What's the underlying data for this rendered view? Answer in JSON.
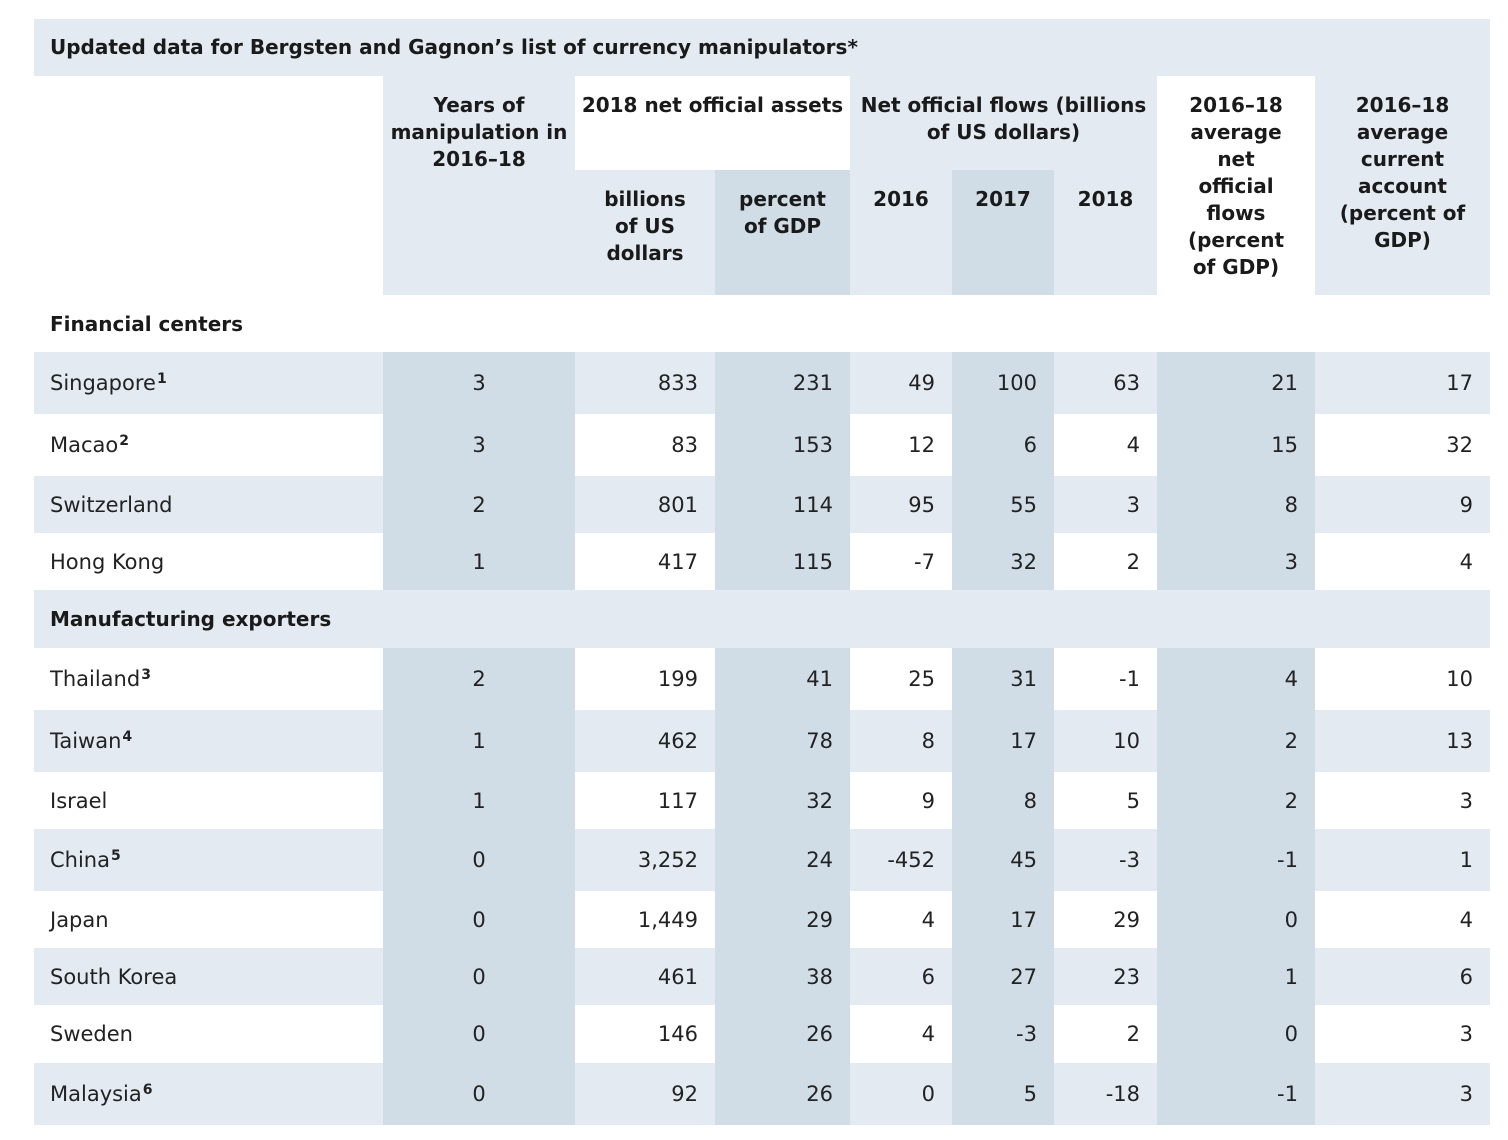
{
  "title": "Updated data for Bergsten and Gagnon’s list of currency manipulators*",
  "headers": {
    "years": "Years of manipulation in 2016–18",
    "assets_group": "2018 net official assets",
    "assets_billions": "billions of US dollars",
    "assets_percent": "percent of GDP",
    "flows_group": "Net official flows (billions of US dollars)",
    "y2016": "2016",
    "y2017": "2017",
    "y2018": "2018",
    "avg_flows": "2016–18 average net official flows (percent of GDP)",
    "avg_current": "2016–18 average current account (percent of GDP)"
  },
  "sections": [
    {
      "label": "Financial centers",
      "rows": [
        {
          "name": "Singapore",
          "note": "1",
          "years": "3",
          "billions": "833",
          "percent": "231",
          "f2016": "49",
          "f2017": "100",
          "f2018": "63",
          "avg_flows": "21",
          "avg_ca": "17"
        },
        {
          "name": "Macao",
          "note": "2",
          "years": "3",
          "billions": "83",
          "percent": "153",
          "f2016": "12",
          "f2017": "6",
          "f2018": "4",
          "avg_flows": "15",
          "avg_ca": "32"
        },
        {
          "name": "Switzerland",
          "note": "",
          "years": "2",
          "billions": "801",
          "percent": "114",
          "f2016": "95",
          "f2017": "55",
          "f2018": "3",
          "avg_flows": "8",
          "avg_ca": "9"
        },
        {
          "name": "Hong Kong",
          "note": "",
          "years": "1",
          "billions": "417",
          "percent": "115",
          "f2016": "-7",
          "f2017": "32",
          "f2018": "2",
          "avg_flows": "3",
          "avg_ca": "4"
        }
      ]
    },
    {
      "label": "Manufacturing exporters",
      "rows": [
        {
          "name": "Thailand",
          "note": "3",
          "years": "2",
          "billions": "199",
          "percent": "41",
          "f2016": "25",
          "f2017": "31",
          "f2018": "-1",
          "avg_flows": "4",
          "avg_ca": "10"
        },
        {
          "name": "Taiwan",
          "note": "4",
          "years": "1",
          "billions": "462",
          "percent": "78",
          "f2016": "8",
          "f2017": "17",
          "f2018": "10",
          "avg_flows": "2",
          "avg_ca": "13"
        },
        {
          "name": "Israel",
          "note": "",
          "years": "1",
          "billions": "117",
          "percent": "32",
          "f2016": "9",
          "f2017": "8",
          "f2018": "5",
          "avg_flows": "2",
          "avg_ca": "3"
        },
        {
          "name": "China",
          "note": "5",
          "years": "0",
          "billions": "3,252",
          "percent": "24",
          "f2016": "-452",
          "f2017": "45",
          "f2018": "-3",
          "avg_flows": "-1",
          "avg_ca": "1"
        },
        {
          "name": "Japan",
          "note": "",
          "years": "0",
          "billions": "1,449",
          "percent": "29",
          "f2016": "4",
          "f2017": "17",
          "f2018": "29",
          "avg_flows": "0",
          "avg_ca": "4"
        },
        {
          "name": "South Korea",
          "note": "",
          "years": "0",
          "billions": "461",
          "percent": "38",
          "f2016": "6",
          "f2017": "27",
          "f2018": "23",
          "avg_flows": "1",
          "avg_ca": "6"
        },
        {
          "name": "Sweden",
          "note": "",
          "years": "0",
          "billions": "146",
          "percent": "26",
          "f2016": "4",
          "f2017": "-3",
          "f2018": "2",
          "avg_flows": "0",
          "avg_ca": "3"
        },
        {
          "name": "Malaysia",
          "note": "6",
          "years": "0",
          "billions": "92",
          "percent": "26",
          "f2016": "0",
          "f2017": "5",
          "f2018": "-18",
          "avg_flows": "-1",
          "avg_ca": "3"
        }
      ]
    }
  ]
}
